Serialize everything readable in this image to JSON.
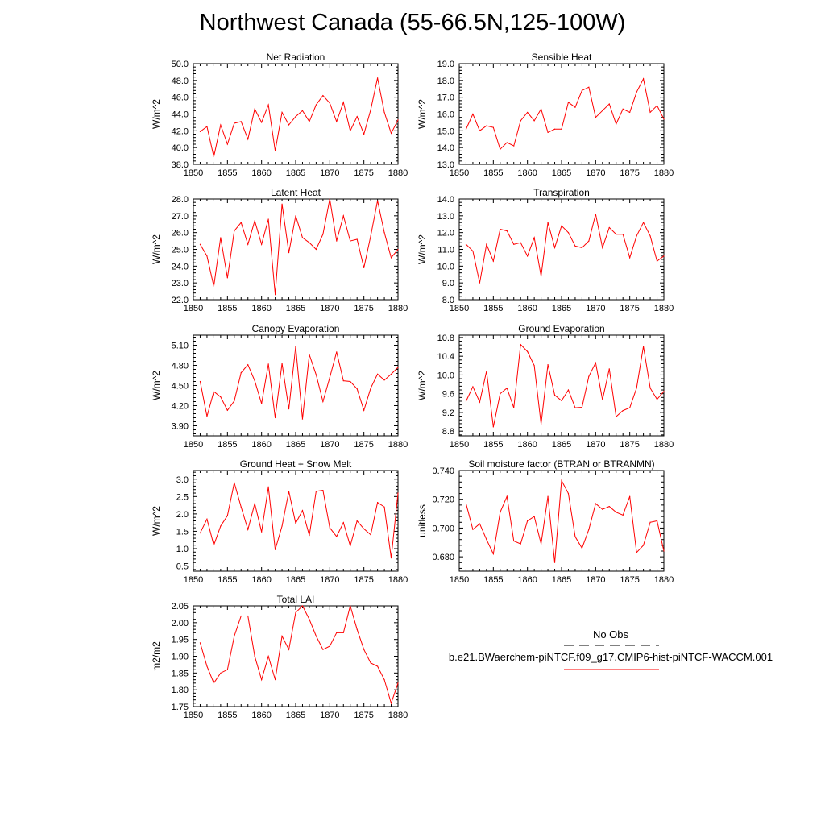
{
  "title": "Northwest Canada (55-66.5N,125-100W)",
  "legend": {
    "obs_label": "No Obs",
    "model_label": "b.e21.BWaerchem-piNTCF.f09_g17.CMIP6-hist-piNTCF-WACCM.001",
    "model_color": "#ff0000",
    "obs_color": "#000000"
  },
  "chart_data": [
    {
      "type": "line",
      "title": "Net Radiation",
      "ylabel": "W/m^2",
      "xlim": [
        1850,
        1880
      ],
      "ylim": [
        38.0,
        50.0
      ],
      "yticks": [
        38.0,
        40.0,
        42.0,
        44.0,
        46.0,
        48.0,
        50.0
      ],
      "ytick_labels": [
        "38.0",
        "40.0",
        "42.0",
        "44.0",
        "46.0",
        "48.0",
        "50.0"
      ],
      "xticks": [
        1850,
        1855,
        1860,
        1865,
        1870,
        1875,
        1880
      ],
      "x": [
        1851,
        1852,
        1853,
        1854,
        1855,
        1856,
        1857,
        1858,
        1859,
        1860,
        1861,
        1862,
        1863,
        1864,
        1865,
        1866,
        1867,
        1868,
        1869,
        1870,
        1871,
        1872,
        1873,
        1874,
        1875,
        1876,
        1877,
        1878,
        1879,
        1880
      ],
      "series": [
        {
          "values": [
            41.9,
            42.5,
            38.9,
            42.7,
            40.4,
            42.9,
            43.1,
            41.0,
            44.6,
            43.0,
            45.1,
            39.6,
            44.2,
            42.7,
            43.7,
            44.4,
            43.1,
            45.1,
            46.2,
            45.3,
            43.1,
            45.4,
            42.0,
            43.7,
            41.6,
            44.5,
            48.3,
            44.2,
            41.7,
            43.3
          ]
        }
      ]
    },
    {
      "type": "line",
      "title": "Sensible Heat",
      "ylabel": "W/m^2",
      "xlim": [
        1850,
        1880
      ],
      "ylim": [
        13.0,
        19.0
      ],
      "yticks": [
        13.0,
        14.0,
        15.0,
        16.0,
        17.0,
        18.0,
        19.0
      ],
      "ytick_labels": [
        "13.0",
        "14.0",
        "15.0",
        "16.0",
        "17.0",
        "18.0",
        "19.0"
      ],
      "xticks": [
        1850,
        1855,
        1860,
        1865,
        1870,
        1875,
        1880
      ],
      "x": [
        1851,
        1852,
        1853,
        1854,
        1855,
        1856,
        1857,
        1858,
        1859,
        1860,
        1861,
        1862,
        1863,
        1864,
        1865,
        1866,
        1867,
        1868,
        1869,
        1870,
        1871,
        1872,
        1873,
        1874,
        1875,
        1876,
        1877,
        1878,
        1879,
        1880
      ],
      "series": [
        {
          "values": [
            15.1,
            16.0,
            15.0,
            15.3,
            15.2,
            13.9,
            14.3,
            14.1,
            15.6,
            16.1,
            15.6,
            16.3,
            14.9,
            15.1,
            15.1,
            16.7,
            16.4,
            17.4,
            17.6,
            15.8,
            16.2,
            16.6,
            15.4,
            16.3,
            16.1,
            17.3,
            18.1,
            16.1,
            16.5,
            15.7
          ]
        }
      ]
    },
    {
      "type": "line",
      "title": "Latent Heat",
      "ylabel": "W/m^2",
      "xlim": [
        1850,
        1880
      ],
      "ylim": [
        22.0,
        28.0
      ],
      "yticks": [
        22.0,
        23.0,
        24.0,
        25.0,
        26.0,
        27.0,
        28.0
      ],
      "ytick_labels": [
        "22.0",
        "23.0",
        "24.0",
        "25.0",
        "26.0",
        "27.0",
        "28.0"
      ],
      "xticks": [
        1850,
        1855,
        1860,
        1865,
        1870,
        1875,
        1880
      ],
      "x": [
        1851,
        1852,
        1853,
        1854,
        1855,
        1856,
        1857,
        1858,
        1859,
        1860,
        1861,
        1862,
        1863,
        1864,
        1865,
        1866,
        1867,
        1868,
        1869,
        1870,
        1871,
        1872,
        1873,
        1874,
        1875,
        1876,
        1877,
        1878,
        1879,
        1880
      ],
      "series": [
        {
          "values": [
            25.3,
            24.6,
            22.8,
            25.7,
            23.3,
            26.1,
            26.6,
            25.3,
            26.7,
            25.3,
            26.8,
            22.3,
            27.7,
            24.8,
            27.0,
            25.7,
            25.4,
            25.0,
            25.9,
            28.0,
            25.5,
            27.0,
            25.5,
            25.6,
            23.9,
            25.8,
            27.9,
            26.0,
            24.5,
            25.0
          ]
        }
      ]
    },
    {
      "type": "line",
      "title": "Transpiration",
      "ylabel": "W/m^2",
      "xlim": [
        1850,
        1880
      ],
      "ylim": [
        8.0,
        14.0
      ],
      "yticks": [
        8.0,
        9.0,
        10.0,
        11.0,
        12.0,
        13.0,
        14.0
      ],
      "ytick_labels": [
        "8.0",
        "9.0",
        "10.0",
        "11.0",
        "12.0",
        "13.0",
        "14.0"
      ],
      "xticks": [
        1850,
        1855,
        1860,
        1865,
        1870,
        1875,
        1880
      ],
      "x": [
        1851,
        1852,
        1853,
        1854,
        1855,
        1856,
        1857,
        1858,
        1859,
        1860,
        1861,
        1862,
        1863,
        1864,
        1865,
        1866,
        1867,
        1868,
        1869,
        1870,
        1871,
        1872,
        1873,
        1874,
        1875,
        1876,
        1877,
        1878,
        1879,
        1880
      ],
      "series": [
        {
          "values": [
            11.3,
            10.9,
            9.0,
            11.3,
            10.3,
            12.2,
            12.1,
            11.3,
            11.4,
            10.6,
            11.7,
            9.4,
            12.6,
            11.1,
            12.4,
            12.0,
            11.2,
            11.1,
            11.5,
            13.1,
            11.1,
            12.3,
            11.9,
            11.9,
            10.5,
            11.8,
            12.6,
            11.8,
            10.3,
            10.6
          ]
        }
      ]
    },
    {
      "type": "line",
      "title": "Canopy Evaporation",
      "ylabel": "W/m^2",
      "xlim": [
        1850,
        1880
      ],
      "ylim": [
        3.75,
        5.25
      ],
      "yticks": [
        3.9,
        4.2,
        4.5,
        4.8,
        5.1
      ],
      "ytick_labels": [
        "3.90",
        "4.20",
        "4.50",
        "4.80",
        "5.10"
      ],
      "xticks": [
        1850,
        1855,
        1860,
        1865,
        1870,
        1875,
        1880
      ],
      "x": [
        1851,
        1852,
        1853,
        1854,
        1855,
        1856,
        1857,
        1858,
        1859,
        1860,
        1861,
        1862,
        1863,
        1864,
        1865,
        1866,
        1867,
        1868,
        1869,
        1870,
        1871,
        1872,
        1873,
        1874,
        1875,
        1876,
        1877,
        1878,
        1879,
        1880
      ],
      "series": [
        {
          "values": [
            4.56,
            4.04,
            4.41,
            4.33,
            4.13,
            4.27,
            4.69,
            4.81,
            4.57,
            4.23,
            4.82,
            4.02,
            4.83,
            4.15,
            5.08,
            4.0,
            4.96,
            4.66,
            4.26,
            4.62,
            5.0,
            4.57,
            4.56,
            4.45,
            4.13,
            4.46,
            4.67,
            4.58,
            4.67,
            4.77
          ]
        }
      ]
    },
    {
      "type": "line",
      "title": "Ground Evaporation",
      "ylabel": "W/m^2",
      "xlim": [
        1850,
        1880
      ],
      "ylim": [
        8.7,
        10.85
      ],
      "yticks": [
        8.8,
        9.2,
        9.6,
        10.0,
        10.4,
        10.8
      ],
      "ytick_labels": [
        "8.8",
        "9.2",
        "9.6",
        "10.0",
        "10.4",
        "10.8"
      ],
      "xticks": [
        1850,
        1855,
        1860,
        1865,
        1870,
        1875,
        1880
      ],
      "x": [
        1851,
        1852,
        1853,
        1854,
        1855,
        1856,
        1857,
        1858,
        1859,
        1860,
        1861,
        1862,
        1863,
        1864,
        1865,
        1866,
        1867,
        1868,
        1869,
        1870,
        1871,
        1872,
        1873,
        1874,
        1875,
        1876,
        1877,
        1878,
        1879,
        1880
      ],
      "series": [
        {
          "values": [
            9.44,
            9.75,
            9.42,
            10.08,
            8.89,
            9.6,
            9.72,
            9.3,
            10.65,
            10.5,
            10.2,
            8.95,
            10.22,
            9.57,
            9.45,
            9.68,
            9.3,
            9.31,
            9.97,
            10.26,
            9.47,
            10.13,
            9.11,
            9.24,
            9.3,
            9.72,
            10.61,
            9.72,
            9.48,
            9.65
          ]
        }
      ]
    },
    {
      "type": "line",
      "title": "Ground Heat + Snow Melt",
      "ylabel": "W/m^2",
      "xlim": [
        1850,
        1880
      ],
      "ylim": [
        0.35,
        3.25
      ],
      "yticks": [
        0.5,
        1.0,
        1.5,
        2.0,
        2.5,
        3.0
      ],
      "ytick_labels": [
        "0.5",
        "1.0",
        "1.5",
        "2.0",
        "2.5",
        "3.0"
      ],
      "xticks": [
        1850,
        1855,
        1860,
        1865,
        1870,
        1875,
        1880
      ],
      "x": [
        1851,
        1852,
        1853,
        1854,
        1855,
        1856,
        1857,
        1858,
        1859,
        1860,
        1861,
        1862,
        1863,
        1864,
        1865,
        1866,
        1867,
        1868,
        1869,
        1870,
        1871,
        1872,
        1873,
        1874,
        1875,
        1876,
        1877,
        1878,
        1879,
        1880
      ],
      "series": [
        {
          "values": [
            1.45,
            1.85,
            1.1,
            1.65,
            1.95,
            2.9,
            2.2,
            1.55,
            2.3,
            1.48,
            2.78,
            0.97,
            1.65,
            2.65,
            1.73,
            2.1,
            1.38,
            2.65,
            2.68,
            1.6,
            1.35,
            1.75,
            1.08,
            1.8,
            1.57,
            1.4,
            2.33,
            2.2,
            0.73,
            2.6
          ]
        }
      ]
    },
    {
      "type": "line",
      "title": "Soil moisture factor (BTRAN or BTRANMN)",
      "ylabel": "unitless",
      "xlim": [
        1850,
        1880
      ],
      "ylim": [
        0.67,
        0.74
      ],
      "yticks": [
        0.68,
        0.7,
        0.72,
        0.74
      ],
      "ytick_labels": [
        "0.680",
        "0.700",
        "0.720",
        "0.740"
      ],
      "xticks": [
        1850,
        1855,
        1860,
        1865,
        1870,
        1875,
        1880
      ],
      "x": [
        1851,
        1852,
        1853,
        1854,
        1855,
        1856,
        1857,
        1858,
        1859,
        1860,
        1861,
        1862,
        1863,
        1864,
        1865,
        1866,
        1867,
        1868,
        1869,
        1870,
        1871,
        1872,
        1873,
        1874,
        1875,
        1876,
        1877,
        1878,
        1879,
        1880
      ],
      "series": [
        {
          "values": [
            0.717,
            0.699,
            0.703,
            0.692,
            0.682,
            0.711,
            0.722,
            0.691,
            0.689,
            0.705,
            0.708,
            0.689,
            0.722,
            0.676,
            0.733,
            0.724,
            0.694,
            0.686,
            0.699,
            0.717,
            0.713,
            0.715,
            0.711,
            0.709,
            0.722,
            0.683,
            0.688,
            0.704,
            0.705,
            0.684
          ]
        }
      ]
    },
    {
      "type": "line",
      "title": "Total LAI",
      "ylabel": "m2/m2",
      "xlim": [
        1850,
        1880
      ],
      "ylim": [
        1.75,
        2.05
      ],
      "yticks": [
        1.75,
        1.8,
        1.85,
        1.9,
        1.95,
        2.0,
        2.05
      ],
      "ytick_labels": [
        "1.75",
        "1.80",
        "1.85",
        "1.90",
        "1.95",
        "2.00",
        "2.05"
      ],
      "xticks": [
        1850,
        1855,
        1860,
        1865,
        1870,
        1875,
        1880
      ],
      "x": [
        1851,
        1852,
        1853,
        1854,
        1855,
        1856,
        1857,
        1858,
        1859,
        1860,
        1861,
        1862,
        1863,
        1864,
        1865,
        1866,
        1867,
        1868,
        1869,
        1870,
        1871,
        1872,
        1873,
        1874,
        1875,
        1876,
        1877,
        1878,
        1879,
        1880
      ],
      "series": [
        {
          "values": [
            1.94,
            1.87,
            1.82,
            1.85,
            1.86,
            1.96,
            2.02,
            2.02,
            1.9,
            1.83,
            1.9,
            1.83,
            1.96,
            1.92,
            2.03,
            2.05,
            2.01,
            1.96,
            1.92,
            1.93,
            1.97,
            1.97,
            2.05,
            1.98,
            1.92,
            1.88,
            1.87,
            1.83,
            1.76,
            1.82
          ]
        }
      ]
    }
  ]
}
